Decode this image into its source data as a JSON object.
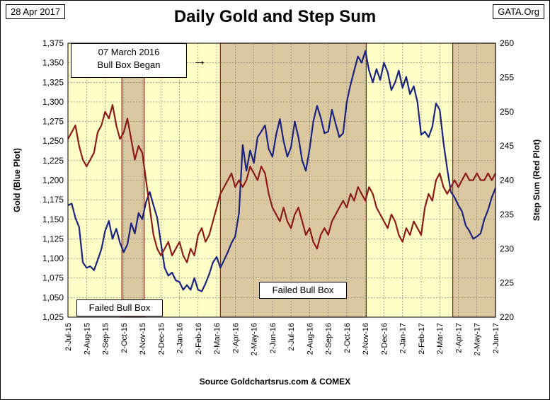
{
  "header": {
    "date": "28 Apr 2017",
    "title": "Daily Gold and Step Sum",
    "source_tag": "GATA.Org"
  },
  "footer": "Source Goldchartsrus.com & COMEX",
  "annotations": {
    "bull_box_began_line1": "07 March 2016",
    "bull_box_began_line2": "Bull Box Began",
    "arrow": "→",
    "failed_bull_box_1": "Failed Bull Box",
    "failed_bull_box_2": "Failed Bull Box"
  },
  "colors": {
    "plot_bg": "#ffffc8",
    "box_fill": "#dcc8a0",
    "box_border": "#8b2020",
    "gold_line": "#1a237e",
    "step_line": "#8b1a1a",
    "grid": "#777777"
  },
  "chart_data": {
    "type": "line",
    "title": "Daily Gold and Step Sum",
    "ylabel_left": "Gold   (Blue Plot)",
    "ylabel_right": "Step Sum   (Red Plot)",
    "xlabel": "",
    "grid": true,
    "x_ticks": [
      "2-Jul-15",
      "2-Aug-15",
      "2-Sep-15",
      "2-Oct-15",
      "2-Nov-15",
      "2-Dec-15",
      "2-Jan-16",
      "2-Feb-16",
      "2-Mar-16",
      "2-Apr-16",
      "2-May-16",
      "2-Jun-16",
      "2-Jul-16",
      "2-Aug-16",
      "2-Sep-16",
      "2-Oct-16",
      "2-Nov-16",
      "2-Dec-16",
      "2-Jan-17",
      "2-Feb-17",
      "2-Mar-17",
      "2-Apr-17",
      "2-May-17",
      "2-Jun-17"
    ],
    "ylim_left": [
      1025,
      1375
    ],
    "yticks_left": [
      "1,025",
      "1,050",
      "1,075",
      "1,100",
      "1,125",
      "1,150",
      "1,175",
      "1,200",
      "1,225",
      "1,250",
      "1,275",
      "1,300",
      "1,325",
      "1,350",
      "1,375"
    ],
    "ylim_right": [
      220,
      260
    ],
    "yticks_right": [
      "220",
      "225",
      "230",
      "235",
      "240",
      "245",
      "250",
      "255",
      "260"
    ],
    "boxes": [
      {
        "label": "Failed Bull Box",
        "x_start": 2.9,
        "x_end": 4.1
      },
      {
        "label": "Failed Bull Box",
        "x_start": 8.2,
        "x_end": 16.05
      },
      {
        "label": "",
        "x_start": 20.7,
        "x_end": 23.0
      }
    ],
    "series": [
      {
        "name": "Gold",
        "axis": "left",
        "points": [
          [
            0.0,
            1168
          ],
          [
            0.2,
            1170
          ],
          [
            0.4,
            1152
          ],
          [
            0.6,
            1140
          ],
          [
            0.8,
            1095
          ],
          [
            1.0,
            1088
          ],
          [
            1.2,
            1090
          ],
          [
            1.4,
            1085
          ],
          [
            1.6,
            1098
          ],
          [
            1.8,
            1112
          ],
          [
            2.0,
            1135
          ],
          [
            2.2,
            1148
          ],
          [
            2.4,
            1125
          ],
          [
            2.6,
            1138
          ],
          [
            2.8,
            1120
          ],
          [
            3.0,
            1108
          ],
          [
            3.2,
            1118
          ],
          [
            3.4,
            1145
          ],
          [
            3.6,
            1132
          ],
          [
            3.8,
            1158
          ],
          [
            4.0,
            1150
          ],
          [
            4.2,
            1172
          ],
          [
            4.4,
            1185
          ],
          [
            4.6,
            1168
          ],
          [
            4.8,
            1152
          ],
          [
            5.0,
            1120
          ],
          [
            5.2,
            1088
          ],
          [
            5.4,
            1078
          ],
          [
            5.6,
            1082
          ],
          [
            5.8,
            1072
          ],
          [
            6.0,
            1070
          ],
          [
            6.2,
            1060
          ],
          [
            6.4,
            1066
          ],
          [
            6.6,
            1060
          ],
          [
            6.8,
            1075
          ],
          [
            7.0,
            1060
          ],
          [
            7.2,
            1058
          ],
          [
            7.4,
            1068
          ],
          [
            7.6,
            1080
          ],
          [
            7.8,
            1095
          ],
          [
            8.0,
            1102
          ],
          [
            8.2,
            1088
          ],
          [
            8.4,
            1098
          ],
          [
            8.6,
            1108
          ],
          [
            8.8,
            1120
          ],
          [
            9.0,
            1128
          ],
          [
            9.2,
            1158
          ],
          [
            9.4,
            1245
          ],
          [
            9.6,
            1212
          ],
          [
            9.8,
            1238
          ],
          [
            10.0,
            1222
          ],
          [
            10.2,
            1255
          ],
          [
            10.4,
            1262
          ],
          [
            10.6,
            1270
          ],
          [
            10.8,
            1240
          ],
          [
            11.0,
            1230
          ],
          [
            11.2,
            1258
          ],
          [
            11.4,
            1278
          ],
          [
            11.6,
            1250
          ],
          [
            11.8,
            1230
          ],
          [
            12.0,
            1242
          ],
          [
            12.2,
            1275
          ],
          [
            12.4,
            1255
          ],
          [
            12.6,
            1225
          ],
          [
            12.8,
            1212
          ],
          [
            13.0,
            1240
          ],
          [
            13.2,
            1275
          ],
          [
            13.4,
            1295
          ],
          [
            13.6,
            1280
          ],
          [
            13.8,
            1260
          ],
          [
            14.0,
            1262
          ],
          [
            14.2,
            1290
          ],
          [
            14.4,
            1272
          ],
          [
            14.6,
            1255
          ],
          [
            14.8,
            1260
          ],
          [
            15.0,
            1300
          ],
          [
            15.2,
            1322
          ],
          [
            15.4,
            1340
          ],
          [
            15.6,
            1358
          ],
          [
            15.8,
            1350
          ],
          [
            16.0,
            1365
          ],
          [
            16.2,
            1340
          ],
          [
            16.4,
            1325
          ],
          [
            16.6,
            1342
          ],
          [
            16.8,
            1328
          ],
          [
            17.0,
            1350
          ],
          [
            17.2,
            1338
          ],
          [
            17.4,
            1315
          ],
          [
            17.6,
            1325
          ],
          [
            17.8,
            1340
          ],
          [
            18.0,
            1318
          ],
          [
            18.2,
            1332
          ],
          [
            18.4,
            1310
          ],
          [
            18.6,
            1320
          ],
          [
            18.8,
            1300
          ],
          [
            19.0,
            1258
          ],
          [
            19.2,
            1262
          ],
          [
            19.4,
            1255
          ],
          [
            19.6,
            1268
          ],
          [
            19.8,
            1298
          ],
          [
            20.0,
            1290
          ],
          [
            20.2,
            1248
          ],
          [
            20.4,
            1215
          ],
          [
            20.6,
            1185
          ],
          [
            20.8,
            1178
          ],
          [
            21.0,
            1168
          ],
          [
            21.2,
            1160
          ],
          [
            21.4,
            1142
          ],
          [
            21.6,
            1135
          ],
          [
            21.8,
            1125
          ],
          [
            22.0,
            1128
          ],
          [
            22.2,
            1132
          ],
          [
            22.4,
            1150
          ],
          [
            22.6,
            1162
          ],
          [
            22.8,
            1178
          ],
          [
            23.0,
            1190
          ]
        ]
      },
      {
        "name": "Step Sum",
        "axis": "right",
        "points": [
          [
            0.0,
            246
          ],
          [
            0.2,
            247
          ],
          [
            0.4,
            248
          ],
          [
            0.6,
            245
          ],
          [
            0.8,
            243
          ],
          [
            1.0,
            242
          ],
          [
            1.2,
            243
          ],
          [
            1.4,
            244
          ],
          [
            1.6,
            247
          ],
          [
            1.8,
            248
          ],
          [
            2.0,
            250
          ],
          [
            2.2,
            249
          ],
          [
            2.4,
            251
          ],
          [
            2.6,
            248
          ],
          [
            2.8,
            246
          ],
          [
            3.0,
            247
          ],
          [
            3.2,
            249
          ],
          [
            3.4,
            246
          ],
          [
            3.6,
            243
          ],
          [
            3.8,
            245
          ],
          [
            4.0,
            244
          ],
          [
            4.2,
            240
          ],
          [
            4.4,
            236
          ],
          [
            4.6,
            232
          ],
          [
            4.8,
            230
          ],
          [
            5.0,
            229
          ],
          [
            5.2,
            230
          ],
          [
            5.4,
            231
          ],
          [
            5.6,
            229
          ],
          [
            5.8,
            230
          ],
          [
            6.0,
            231
          ],
          [
            6.2,
            229
          ],
          [
            6.4,
            228
          ],
          [
            6.6,
            230
          ],
          [
            6.8,
            229
          ],
          [
            7.0,
            232
          ],
          [
            7.2,
            233
          ],
          [
            7.4,
            231
          ],
          [
            7.6,
            232
          ],
          [
            7.8,
            234
          ],
          [
            8.0,
            236
          ],
          [
            8.2,
            238
          ],
          [
            8.4,
            239
          ],
          [
            8.6,
            240
          ],
          [
            8.8,
            241
          ],
          [
            9.0,
            239
          ],
          [
            9.2,
            240
          ],
          [
            9.4,
            239
          ],
          [
            9.6,
            240
          ],
          [
            9.8,
            242
          ],
          [
            10.0,
            241
          ],
          [
            10.2,
            240
          ],
          [
            10.4,
            242
          ],
          [
            10.6,
            241
          ],
          [
            10.8,
            238
          ],
          [
            11.0,
            236
          ],
          [
            11.2,
            235
          ],
          [
            11.4,
            234
          ],
          [
            11.6,
            236
          ],
          [
            11.8,
            234
          ],
          [
            12.0,
            233
          ],
          [
            12.2,
            235
          ],
          [
            12.4,
            236
          ],
          [
            12.6,
            234
          ],
          [
            12.8,
            232
          ],
          [
            13.0,
            233
          ],
          [
            13.2,
            231
          ],
          [
            13.4,
            230
          ],
          [
            13.6,
            232
          ],
          [
            13.8,
            233
          ],
          [
            14.0,
            232
          ],
          [
            14.2,
            234
          ],
          [
            14.4,
            235
          ],
          [
            14.6,
            236
          ],
          [
            14.8,
            237
          ],
          [
            15.0,
            236
          ],
          [
            15.2,
            238
          ],
          [
            15.4,
            237
          ],
          [
            15.6,
            239
          ],
          [
            15.8,
            238
          ],
          [
            16.0,
            237
          ],
          [
            16.2,
            239
          ],
          [
            16.4,
            238
          ],
          [
            16.6,
            236
          ],
          [
            16.8,
            235
          ],
          [
            17.0,
            234
          ],
          [
            17.2,
            233
          ],
          [
            17.4,
            235
          ],
          [
            17.6,
            234
          ],
          [
            17.8,
            232
          ],
          [
            18.0,
            231
          ],
          [
            18.2,
            233
          ],
          [
            18.4,
            232
          ],
          [
            18.6,
            234
          ],
          [
            18.8,
            233
          ],
          [
            19.0,
            232
          ],
          [
            19.2,
            236
          ],
          [
            19.4,
            238
          ],
          [
            19.6,
            237
          ],
          [
            19.8,
            240
          ],
          [
            20.0,
            241
          ],
          [
            20.2,
            239
          ],
          [
            20.4,
            238
          ],
          [
            20.6,
            239
          ],
          [
            20.8,
            240
          ],
          [
            21.0,
            239
          ],
          [
            21.2,
            240
          ],
          [
            21.4,
            241
          ],
          [
            21.6,
            240
          ],
          [
            21.8,
            240
          ],
          [
            22.0,
            241
          ],
          [
            22.2,
            240
          ],
          [
            22.4,
            240
          ],
          [
            22.6,
            241
          ],
          [
            22.8,
            240
          ],
          [
            23.0,
            241
          ]
        ]
      }
    ]
  }
}
